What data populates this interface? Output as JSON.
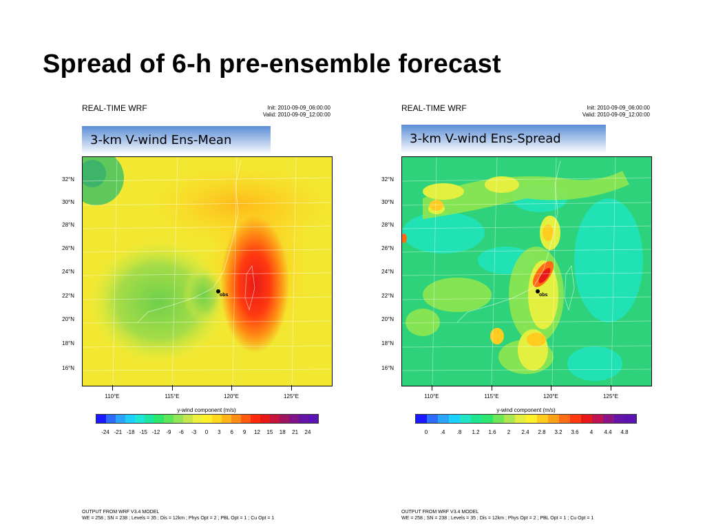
{
  "slide_title": "Spread of 6-h pre-ensemble forecast",
  "panels": [
    {
      "header_title": "REAL-TIME WRF",
      "init": "Init: 2010-09-09_06:00:00",
      "valid": "Valid: 2010-09-09_12:00:00",
      "overlay_label": "3-km V-wind Ens-Mean",
      "lat_labels": [
        "32°N",
        "30°N",
        "28°N",
        "26°N",
        "24°N",
        "22°N",
        "20°N",
        "18°N",
        "16°N"
      ],
      "lon_labels": [
        "110°E",
        "115°E",
        "120°E",
        "125°E"
      ],
      "obs_label": "obs",
      "colorbar_title": "y-wind component  (m/s)",
      "colorbar_labels": [
        "-24",
        "-21",
        "-18",
        "-15",
        "-12",
        "-9",
        "-6",
        "-3",
        "0",
        "3",
        "6",
        "9",
        "12",
        "15",
        "18",
        "21",
        "24"
      ],
      "footer_line1": "OUTPUT FROM WRF V3.4 MODEL",
      "footer_line2": "WE = 258 ; SN = 238 ; Levels = 35 ; Dis = 12km ; Phys Opt = 2 ; PBL Opt = 1 ; Cu Opt = 1"
    },
    {
      "header_title": "REAL-TIME WRF",
      "init": "Init: 2010-09-09_06:00:00",
      "valid": "Valid: 2010-09-09_12:00:00",
      "overlay_label": "3-km V-wind Ens-Spread",
      "lat_labels": [
        "32°N",
        "30°N",
        "28°N",
        "26°N",
        "24°N",
        "22°N",
        "20°N",
        "18°N",
        "16°N"
      ],
      "lon_labels": [
        "110°E",
        "115°E",
        "120°E",
        "125°E"
      ],
      "obs_label": "obs",
      "colorbar_title": "y-wind component  (m/s)",
      "colorbar_labels": [
        "0",
        ".4",
        ".8",
        "1.2",
        "1.6",
        "2",
        "2.4",
        "2.8",
        "3.2",
        "3.6",
        "4",
        "4.4",
        "4.8"
      ],
      "footer_line1": "OUTPUT FROM WRF V3.4 MODEL",
      "footer_line2": "WE = 258 ; SN = 238 ; Levels = 35 ; Dis = 12km ; Phys Opt = 2 ; PBL Opt = 1 ; Cu Opt = 1"
    }
  ],
  "colors": {
    "mean_colorbar": [
      "#1a1aff",
      "#2e6cff",
      "#2aa4ff",
      "#1ed0ff",
      "#1ee6d6",
      "#1ee6a0",
      "#2ee66e",
      "#5ee65a",
      "#92e65a",
      "#c6e650",
      "#eef040",
      "#fff02a",
      "#ffd820",
      "#ffb41a",
      "#ff8c14",
      "#ff5a10",
      "#ff2a0e",
      "#e81818",
      "#c8143c",
      "#a01460",
      "#801486",
      "#6414a8",
      "#5a14b4"
    ],
    "spread_colorbar": [
      "#1a1aff",
      "#2e6cff",
      "#2aa4ff",
      "#1ed0ff",
      "#1ee6c4",
      "#1ee690",
      "#2ee66e",
      "#6ee65a",
      "#aee650",
      "#e4f040",
      "#fff02a",
      "#ffcc20",
      "#ffa01a",
      "#ff6c14",
      "#ff3a10",
      "#e81818",
      "#c01450",
      "#8c1486",
      "#6414a8",
      "#5a14b4"
    ]
  }
}
